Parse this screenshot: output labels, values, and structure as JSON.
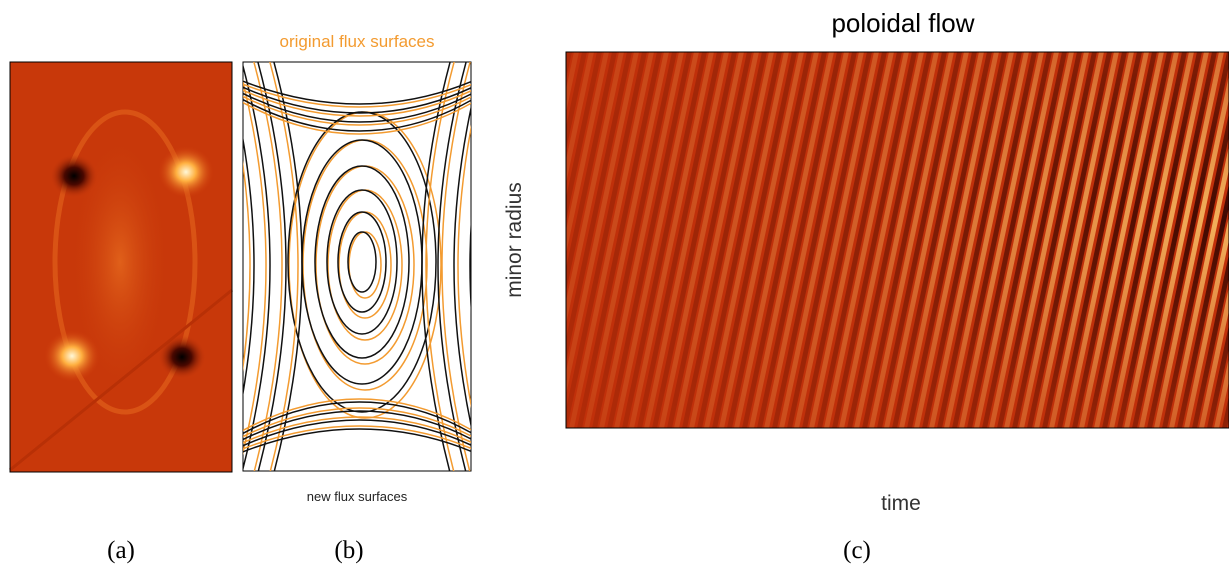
{
  "panel_a": {
    "label": "(a)"
  },
  "panel_b": {
    "top_label": "original flux surfaces",
    "bottom_label": "new flux surfaces",
    "label": "(b)"
  },
  "panel_c": {
    "title": "poloidal flow",
    "y_label": "minor radius",
    "x_label": "time",
    "label": "(c)"
  }
}
